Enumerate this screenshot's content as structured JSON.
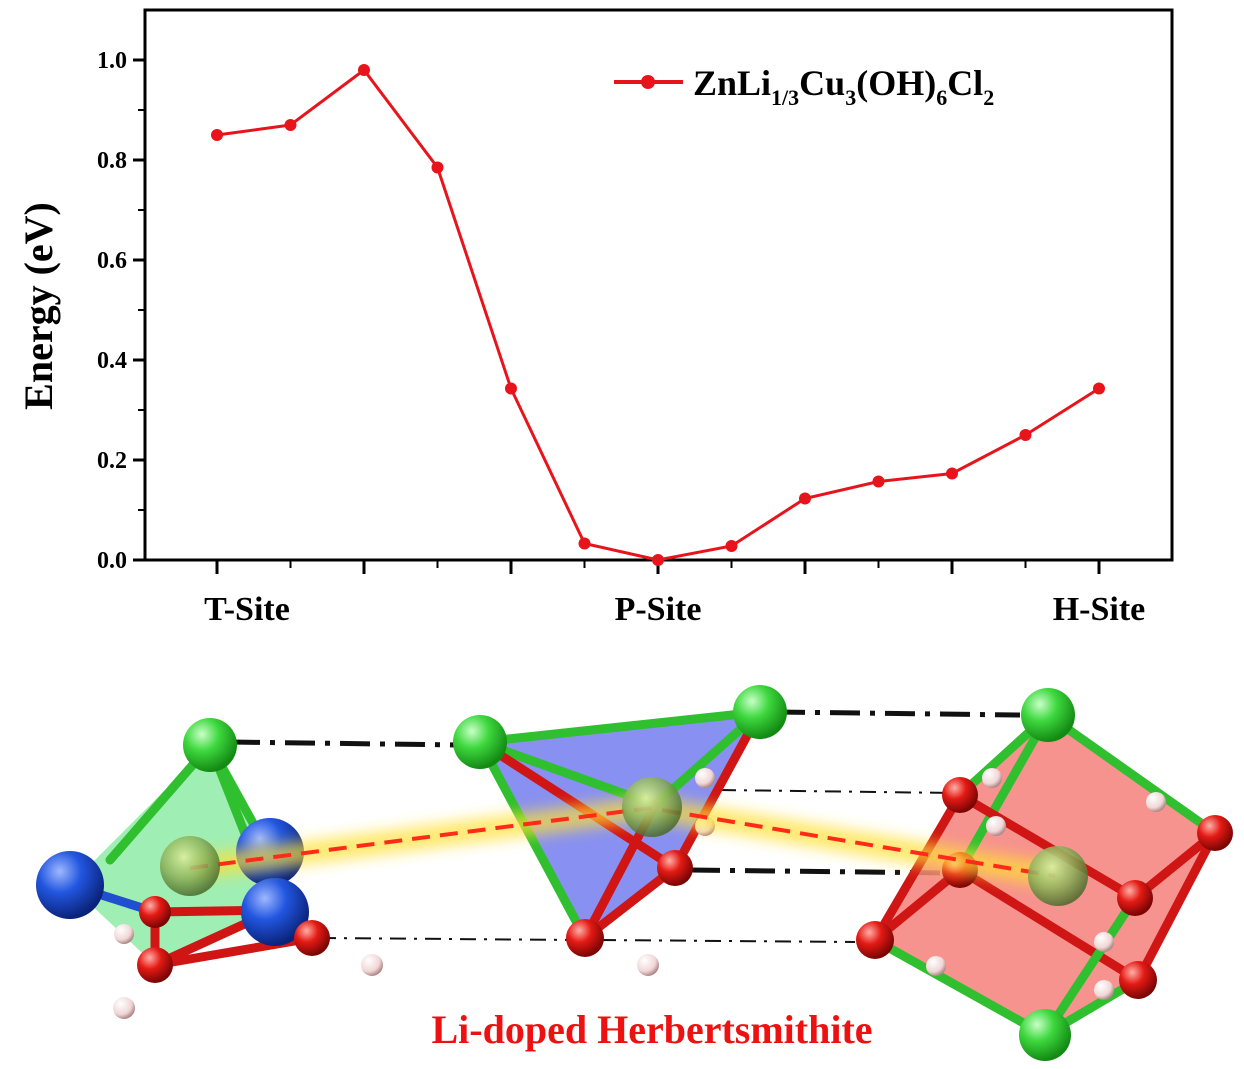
{
  "chart_data": {
    "type": "line",
    "ylabel": "Energy (eV)",
    "ylim": [
      0,
      1.1
    ],
    "yticks": [
      "0.0",
      "0.2",
      "0.4",
      "0.6",
      "0.8",
      "1.0"
    ],
    "site_labels": [
      "T-Site",
      "P-Site",
      "H-Site"
    ],
    "series": [
      {
        "name": "ZnLi1/3Cu3(OH)6Cl2",
        "color": "#e8141c",
        "x": [
          0,
          1,
          2,
          3,
          4,
          5,
          6,
          7,
          8,
          9,
          10,
          11,
          12
        ],
        "values": [
          0.85,
          0.87,
          0.98,
          0.785,
          0.343,
          0.033,
          0.0,
          0.028,
          0.123,
          0.157,
          0.173,
          0.25,
          0.343
        ]
      }
    ],
    "legend": {
      "position": "top-right"
    }
  },
  "legend_parts": {
    "base1": "ZnLi",
    "sub1": "1/3",
    "base2": "Cu",
    "sub2": "3",
    "base3": "(OH)",
    "sub3": "6",
    "base4": "Cl",
    "sub4": "2"
  },
  "caption": "Li-doped Herbertsmithite",
  "colors": {
    "cl": "#2fd32f",
    "cu": "#1e4fd8",
    "o": "#e01010",
    "h": "#f3d9d9",
    "li": "#8fb25a",
    "path": "#ff2a1a",
    "t_poly": "#7fe89a",
    "p_poly": "#7b84f0",
    "h_poly": "#f4807a"
  }
}
